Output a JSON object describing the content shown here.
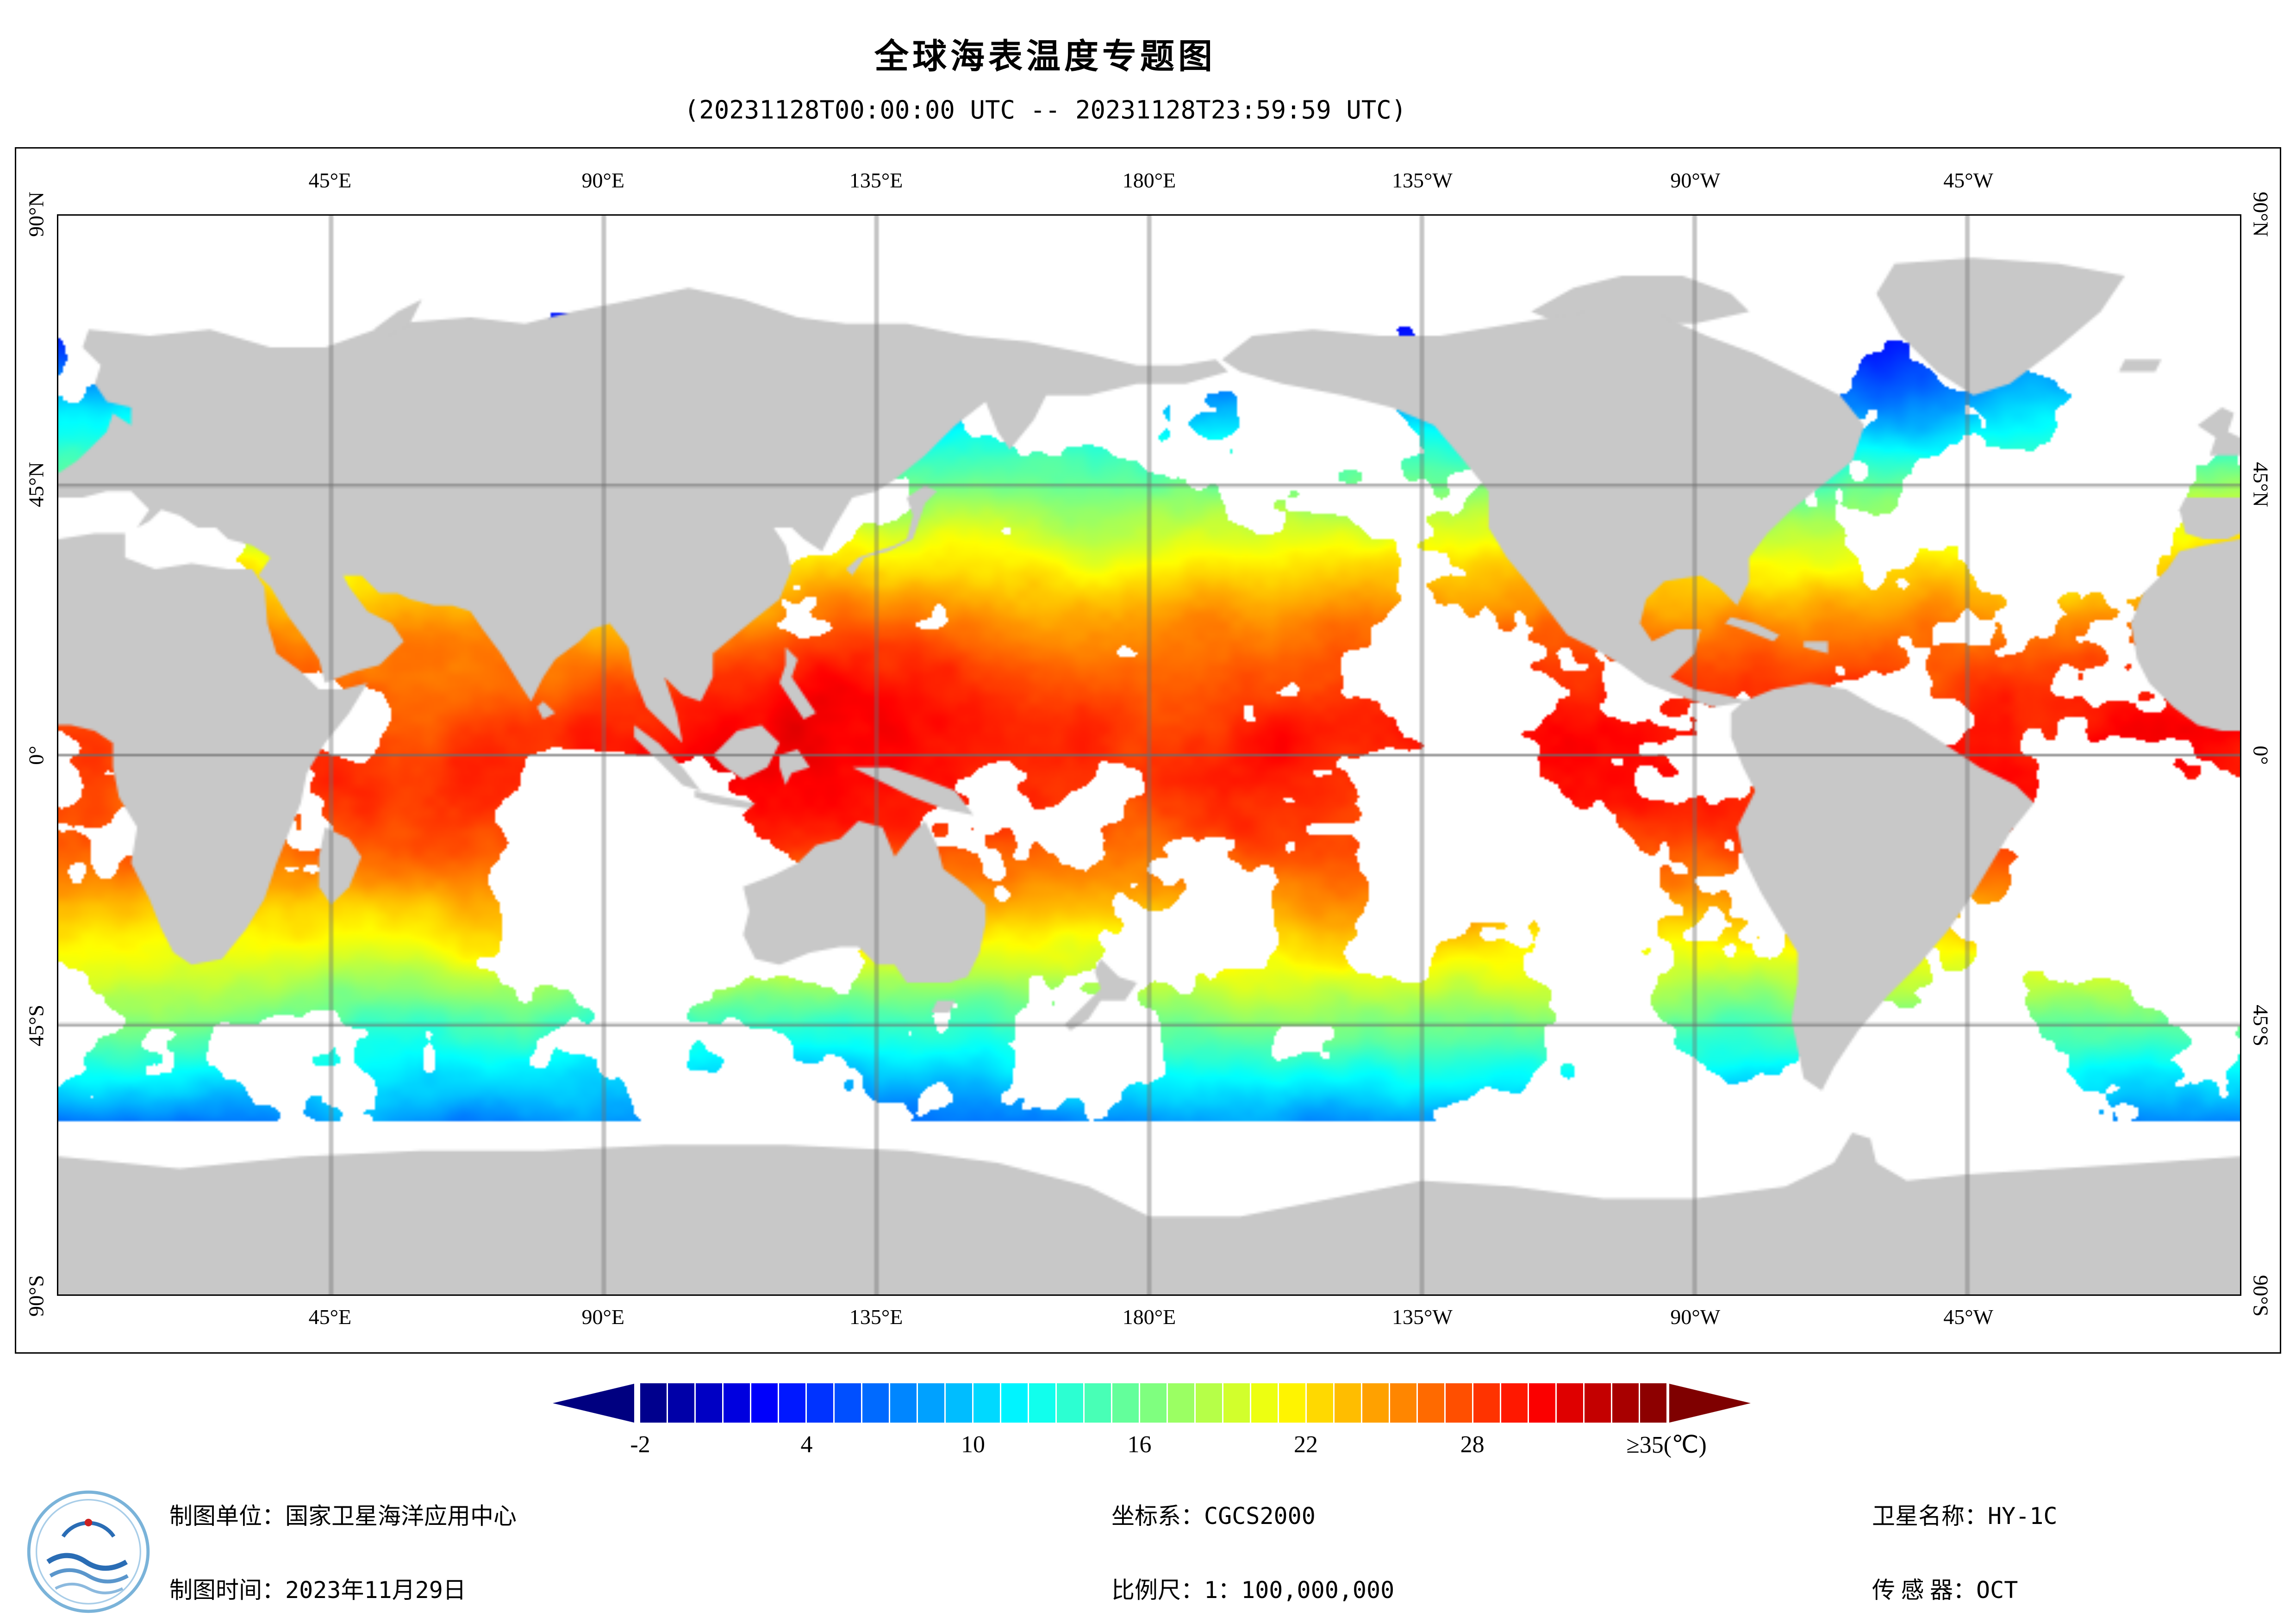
{
  "header": {
    "title": "全球海表温度专题图",
    "subtitle": "(20231128T00:00:00 UTC -- 20231128T23:59:59 UTC)"
  },
  "map": {
    "lon_labels": [
      "45°E",
      "90°E",
      "135°E",
      "180°E",
      "135°W",
      "90°W",
      "45°W"
    ],
    "lat_labels": [
      "90°N",
      "45°N",
      "0°",
      "45°S",
      "90°S"
    ],
    "colors": {
      "land": "#c8c8c8",
      "no_data": "#ffffff",
      "grid": "#6e6e6e",
      "frame": "#000000"
    }
  },
  "colorbar": {
    "min": -2,
    "max": 35,
    "segments": 37,
    "unit": "℃",
    "left_arrow_color": "#000080",
    "right_arrow_color": "#7f0000",
    "ticks": [
      {
        "value": -2,
        "label": "-2"
      },
      {
        "value": 4,
        "label": "4"
      },
      {
        "value": 10,
        "label": "10"
      },
      {
        "value": 16,
        "label": "16"
      },
      {
        "value": 22,
        "label": "22"
      },
      {
        "value": 28,
        "label": "28"
      },
      {
        "value": 35,
        "label": "≥35(℃)"
      }
    ]
  },
  "footer": {
    "columns": [
      {
        "items": [
          {
            "id": "mapping-unit",
            "label": "制图单位：",
            "value": "国家卫星海洋应用中心"
          },
          {
            "id": "mapping-date",
            "label": "制图时间：",
            "value": "2023年11月29日"
          }
        ]
      },
      {
        "items": [
          {
            "id": "coordinate-system",
            "label": "坐标系：",
            "value": "CGCS2000"
          },
          {
            "id": "map-scale",
            "label": "比例尺：",
            "value": "1：100,000,000"
          }
        ]
      },
      {
        "items": [
          {
            "id": "satellite-name",
            "label": "卫星名称：",
            "value": "HY-1C"
          },
          {
            "id": "sensor",
            "label": "传 感 器：",
            "value": "OCT"
          }
        ]
      }
    ]
  }
}
